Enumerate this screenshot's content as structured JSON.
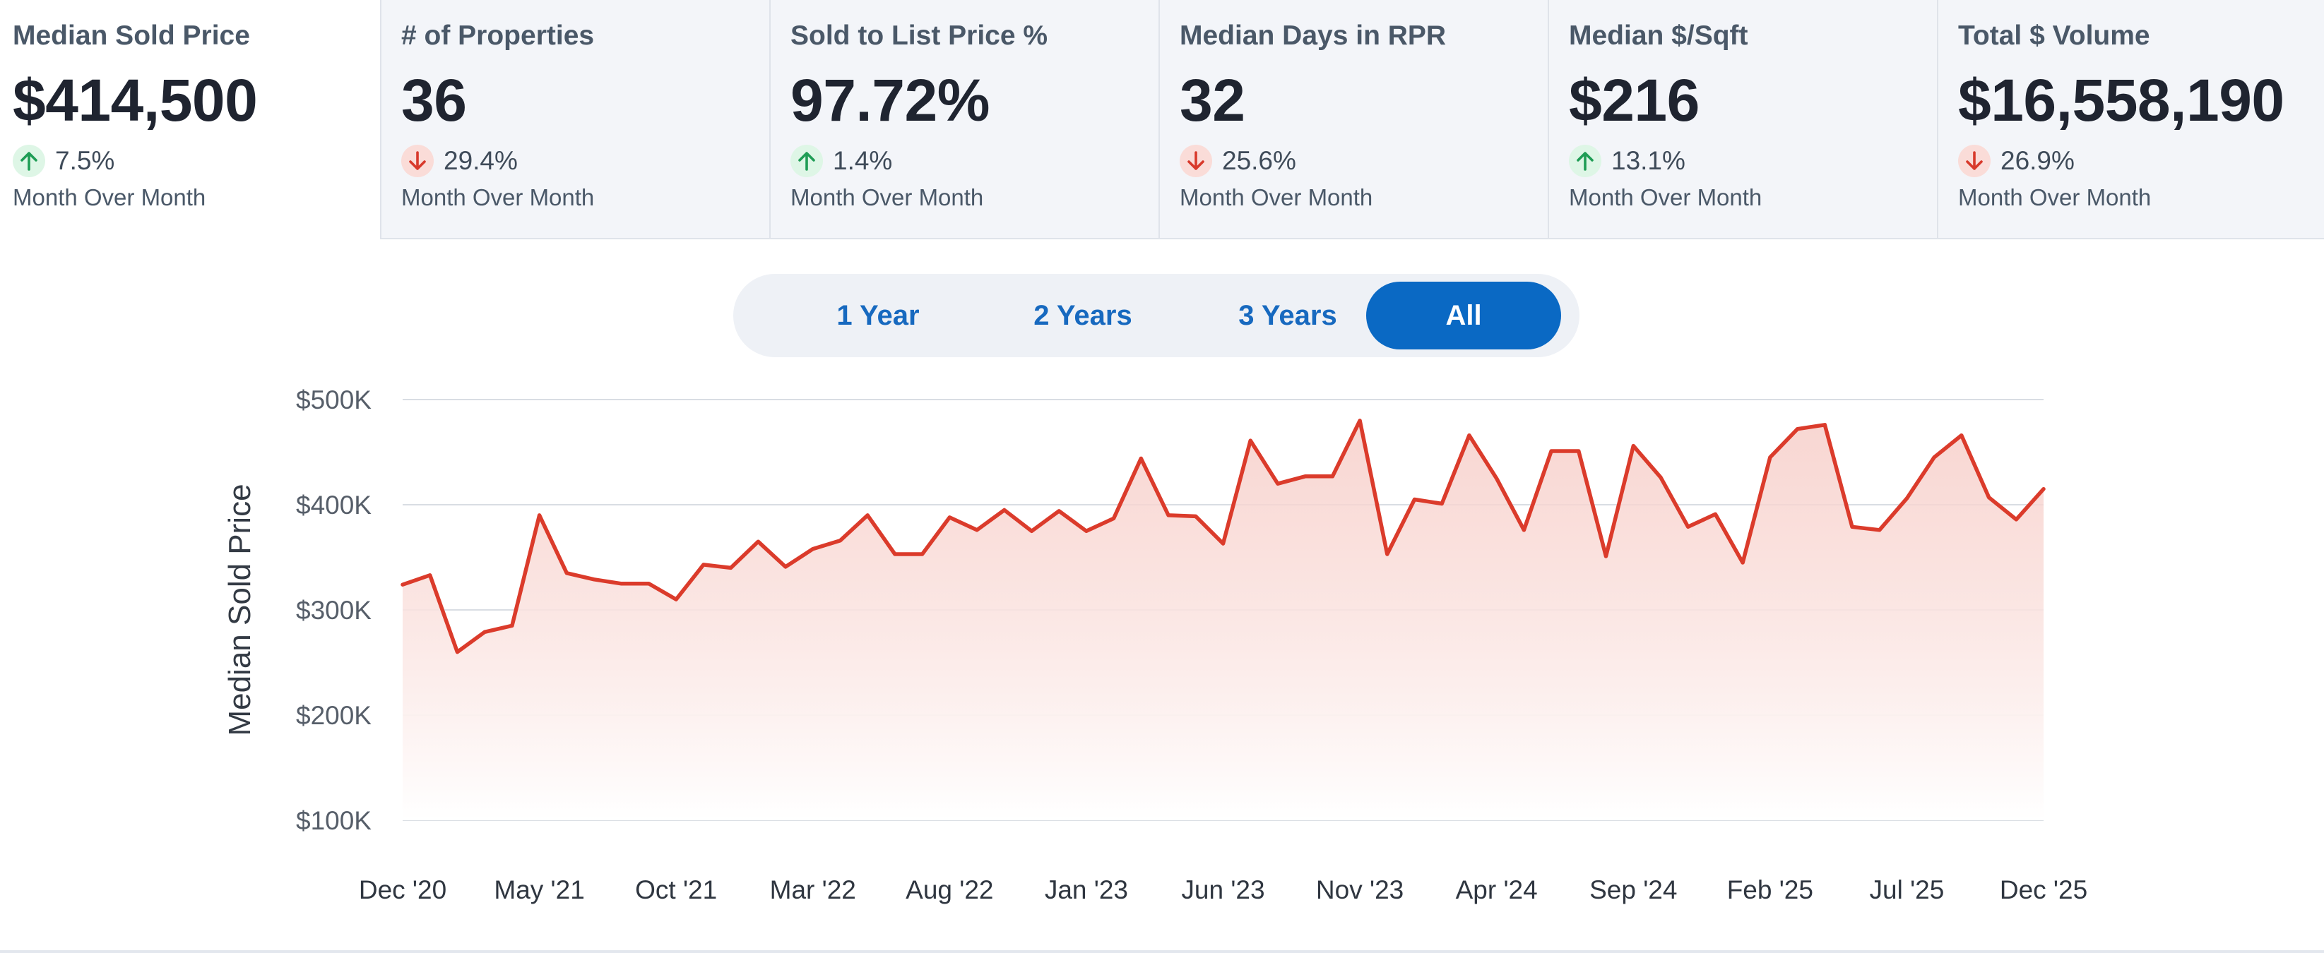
{
  "kpis": [
    {
      "title": "Median Sold Price",
      "value": "$414,500",
      "direction": "up",
      "change": "7.5%",
      "caption": "Month Over Month"
    },
    {
      "title": "# of Properties",
      "value": "36",
      "direction": "down",
      "change": "29.4%",
      "caption": "Month Over Month"
    },
    {
      "title": "Sold to List Price %",
      "value": "97.72%",
      "direction": "up",
      "change": "1.4%",
      "caption": "Month Over Month"
    },
    {
      "title": "Median Days in RPR",
      "value": "32",
      "direction": "down",
      "change": "25.6%",
      "caption": "Month Over Month"
    },
    {
      "title": "Median $/Sqft",
      "value": "$216",
      "direction": "up",
      "change": "13.1%",
      "caption": "Month Over Month"
    },
    {
      "title": "Total $ Volume",
      "value": "$16,558,190",
      "direction": "down",
      "change": "26.9%",
      "caption": "Month Over Month"
    }
  ],
  "range_toggle": {
    "options": [
      "1 Year",
      "2 Years",
      "3 Years",
      "All"
    ],
    "selected": "All"
  },
  "colors": {
    "line": "#db3b2b",
    "area_top": "#f6c9c3",
    "grid": "#d9dde3",
    "up_arrow": "#1f9d55",
    "down_arrow": "#d8392b",
    "accent": "#0a69c4"
  },
  "chart_data": {
    "type": "area",
    "title": "",
    "ylabel": "Median Sold Price",
    "xlabel": "",
    "ylim": [
      100000,
      500000
    ],
    "yticks": [
      {
        "value": 500000,
        "label": "$500K"
      },
      {
        "value": 400000,
        "label": "$400K"
      },
      {
        "value": 300000,
        "label": "$300K"
      },
      {
        "value": 200000,
        "label": "$200K"
      },
      {
        "value": 100000,
        "label": "$100K"
      }
    ],
    "xticks": [
      {
        "index": 0,
        "label": "Dec '20"
      },
      {
        "index": 5,
        "label": "May '21"
      },
      {
        "index": 10,
        "label": "Oct '21"
      },
      {
        "index": 15,
        "label": "Mar '22"
      },
      {
        "index": 20,
        "label": "Aug '22"
      },
      {
        "index": 25,
        "label": "Jan '23"
      },
      {
        "index": 30,
        "label": "Jun '23"
      },
      {
        "index": 35,
        "label": "Nov '23"
      },
      {
        "index": 40,
        "label": "Apr '24"
      },
      {
        "index": 45,
        "label": "Sep '24"
      },
      {
        "index": 50,
        "label": "Feb '25"
      },
      {
        "index": 55,
        "label": "Jul '25"
      },
      {
        "index": 60,
        "label": "Dec '25"
      }
    ],
    "series": [
      {
        "name": "Median Sold Price",
        "values": [
          324000,
          333000,
          260000,
          279000,
          285000,
          390000,
          335000,
          329000,
          325000,
          325000,
          310000,
          343000,
          340000,
          365000,
          341000,
          358000,
          366000,
          390000,
          353000,
          353000,
          388000,
          376000,
          395000,
          375000,
          394000,
          375000,
          387000,
          444000,
          390000,
          389000,
          363000,
          461000,
          420000,
          427000,
          427000,
          480000,
          353000,
          405000,
          401000,
          466000,
          425000,
          376000,
          451000,
          451000,
          351000,
          456000,
          426000,
          379000,
          391000,
          345000,
          445000,
          472000,
          476000,
          379000,
          376000,
          406000,
          445000,
          466000,
          407000,
          386000,
          415000
        ]
      }
    ]
  }
}
